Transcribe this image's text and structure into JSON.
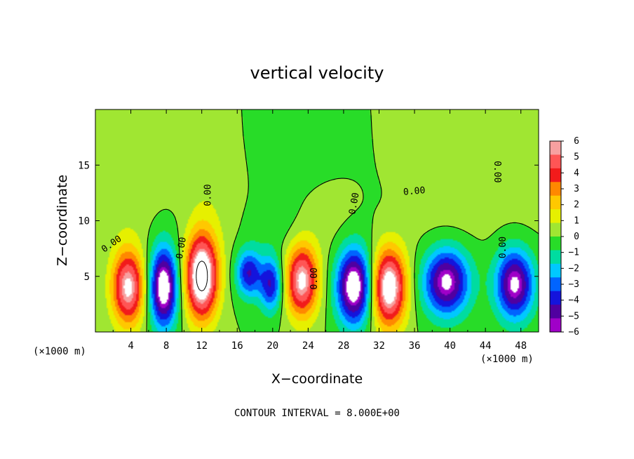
{
  "chart_data": {
    "type": "heatmap",
    "title": "vertical velocity",
    "xlabel": "X−coordinate",
    "ylabel": "Z−coordinate",
    "x_unit": "(×1000 m)",
    "z_unit": "(×1000 m)",
    "xlim": [
      0,
      50
    ],
    "ylim": [
      0,
      20
    ],
    "x_ticks": [
      4,
      8,
      12,
      16,
      20,
      24,
      28,
      32,
      36,
      40,
      44,
      48
    ],
    "x_tick_labels": [
      "4",
      "8",
      "12",
      "16",
      "20",
      "24",
      "28",
      "32",
      "36",
      "40",
      "44",
      "48"
    ],
    "y_ticks": [
      5,
      10,
      15
    ],
    "y_tick_labels": [
      "5",
      "10",
      "15"
    ],
    "contour_interval_text": "CONTOUR INTERVAL = 8.000E+00",
    "colorbar": {
      "levels": [
        6,
        5,
        4,
        3,
        2,
        1,
        0,
        -1,
        -2,
        -3,
        -4,
        -5,
        -6
      ],
      "labels": [
        "6",
        "5",
        "4",
        "3",
        "2",
        "1",
        "0",
        "−1",
        "−2",
        "−3",
        "−4",
        "−5",
        "−6"
      ],
      "colors": [
        "#f7a0a0",
        "#ff5555",
        "#f21b1b",
        "#ff8800",
        "#ffc800",
        "#e6f000",
        "#a0e632",
        "#28dc28",
        "#00dca0",
        "#00c8ff",
        "#0064ff",
        "#1414dc",
        "#5000a0",
        "#a000c8"
      ]
    },
    "contour_labels": [
      {
        "text": "0.00",
        "x": 2.0,
        "z": 7.7,
        "rot": -35
      },
      {
        "text": "0.00",
        "x": 10.0,
        "z": 7.5,
        "rot": -80
      },
      {
        "text": "0.00",
        "x": 13.0,
        "z": 12.3,
        "rot": -90
      },
      {
        "text": "0.00",
        "x": 25.0,
        "z": 4.8,
        "rot": -90
      },
      {
        "text": "0.00",
        "x": 29.5,
        "z": 11.5,
        "rot": -80
      },
      {
        "text": "0.00",
        "x": 36.0,
        "z": 12.4,
        "rot": -5
      },
      {
        "text": "0.00",
        "x": 45.0,
        "z": 14.4,
        "rot": 90
      },
      {
        "text": "0.00",
        "x": 46.3,
        "z": 7.6,
        "rot": -90
      }
    ],
    "cells": [
      {
        "x": 3.7,
        "z": 4.0,
        "amp": 7,
        "sx": 1.3,
        "sz": 2.4
      },
      {
        "x": 7.7,
        "z": 4.0,
        "amp": -8,
        "sx": 1.1,
        "sz": 2.5
      },
      {
        "x": 12.0,
        "z": 5.0,
        "amp": 9,
        "sx": 1.3,
        "sz": 2.7
      },
      {
        "x": 17.3,
        "z": 5.3,
        "amp": -5,
        "sx": 1.0,
        "sz": 1.5
      },
      {
        "x": 19.8,
        "z": 4.3,
        "amp": -5,
        "sx": 0.9,
        "sz": 1.7
      },
      {
        "x": 23.3,
        "z": 4.6,
        "amp": 7,
        "sx": 1.3,
        "sz": 2.3
      },
      {
        "x": 29.2,
        "z": 4.1,
        "amp": -8,
        "sx": 1.4,
        "sz": 2.4
      },
      {
        "x": 33.1,
        "z": 4.0,
        "amp": 8,
        "sx": 1.4,
        "sz": 2.5
      },
      {
        "x": 39.6,
        "z": 4.5,
        "amp": -7,
        "sx": 1.8,
        "sz": 2.1
      },
      {
        "x": 47.3,
        "z": 4.3,
        "amp": -7,
        "sx": 1.5,
        "sz": 2.2
      }
    ],
    "background_cells": [
      {
        "x": 12.0,
        "z": 13.5,
        "amp": 0.6,
        "sx": 3.0,
        "sz": 3.5
      },
      {
        "x": 5.0,
        "z": 12.5,
        "amp": 0.4,
        "sx": 2.5,
        "sz": 3.0
      },
      {
        "x": 28.0,
        "z": 10.5,
        "amp": 0.3,
        "sx": 3.5,
        "sz": 2.5
      },
      {
        "x": 42.5,
        "z": 12.0,
        "amp": 0.9,
        "sx": 2.5,
        "sz": 3.0
      },
      {
        "x": 37.0,
        "z": 16.0,
        "amp": 0.3,
        "sx": 3.0,
        "sz": 3.0
      },
      {
        "x": 20.0,
        "z": 9.5,
        "amp": -0.5,
        "sx": 2.5,
        "sz": 1.5
      },
      {
        "x": 23.0,
        "z": 15.5,
        "amp": -0.4,
        "sx": 4.0,
        "sz": 3.0
      }
    ]
  }
}
